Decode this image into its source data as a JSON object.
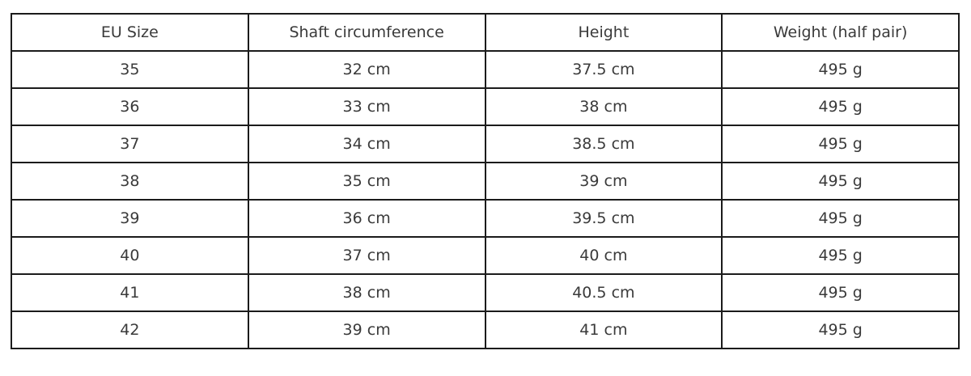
{
  "chart_data": {
    "type": "table",
    "title": "",
    "columns": [
      "EU Size",
      "Shaft circumference",
      "Height",
      "Weight (half pair)"
    ],
    "rows": [
      [
        "35",
        "32 cm",
        "37.5 cm",
        "495 g"
      ],
      [
        "36",
        "33 cm",
        "38 cm",
        "495 g"
      ],
      [
        "37",
        "34 cm",
        "38.5 cm",
        "495 g"
      ],
      [
        "38",
        "35 cm",
        "39 cm",
        "495 g"
      ],
      [
        "39",
        "36 cm",
        "39.5 cm",
        "495 g"
      ],
      [
        "40",
        "37 cm",
        "40 cm",
        "495 g"
      ],
      [
        "41",
        "38 cm",
        "40.5 cm",
        "495 g"
      ],
      [
        "42",
        "39 cm",
        "41 cm",
        "495 g"
      ]
    ]
  },
  "colors": {
    "border": "#1b1b1b",
    "text": "#3a3a3a",
    "background": "#ffffff"
  }
}
